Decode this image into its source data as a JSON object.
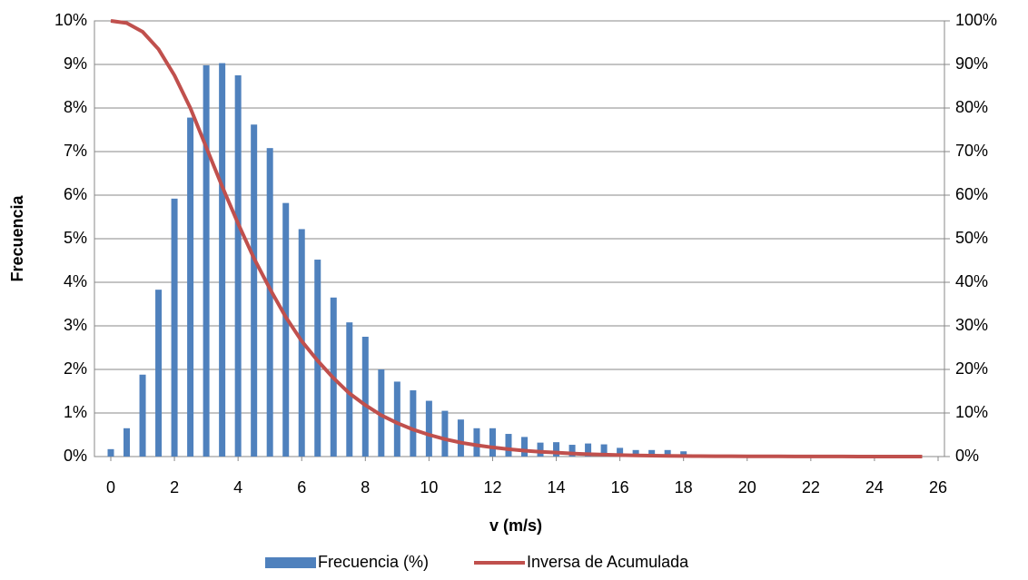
{
  "chart_data": {
    "type": "bar-line",
    "x_label": "v (m/s)",
    "y_label": "Frecuencia",
    "legend": "bottom",
    "grid": true,
    "xlim": [
      0,
      26
    ],
    "xticks": [
      0,
      2,
      4,
      6,
      8,
      10,
      12,
      14,
      16,
      18,
      20,
      22,
      24,
      26
    ],
    "ylim": [
      0,
      10
    ],
    "yticks": [
      {
        "value": 0,
        "label": "0%"
      },
      {
        "value": 1,
        "label": "1%"
      },
      {
        "value": 2,
        "label": "2%"
      },
      {
        "value": 3,
        "label": "3%"
      },
      {
        "value": 4,
        "label": "4%"
      },
      {
        "value": 5,
        "label": "5%"
      },
      {
        "value": 6,
        "label": "6%"
      },
      {
        "value": 7,
        "label": "7%"
      },
      {
        "value": 8,
        "label": "8%"
      },
      {
        "value": 9,
        "label": "9%"
      },
      {
        "value": 10,
        "label": "10%"
      }
    ],
    "y2lim": [
      0,
      100
    ],
    "y2ticks": [
      {
        "value": 0,
        "label": "0%"
      },
      {
        "value": 10,
        "label": "10%"
      },
      {
        "value": 20,
        "label": "20%"
      },
      {
        "value": 30,
        "label": "30%"
      },
      {
        "value": 40,
        "label": "40%"
      },
      {
        "value": 50,
        "label": "50%"
      },
      {
        "value": 60,
        "label": "60%"
      },
      {
        "value": 70,
        "label": "70%"
      },
      {
        "value": 80,
        "label": "80%"
      },
      {
        "value": 90,
        "label": "90%"
      },
      {
        "value": 100,
        "label": "100%"
      }
    ],
    "series": [
      {
        "name": "Frecuencia (%)",
        "type": "bar",
        "color": "#4f81bd",
        "x": [
          0,
          0.5,
          1,
          1.5,
          2,
          2.5,
          3,
          3.5,
          4,
          4.5,
          5,
          5.5,
          6,
          6.5,
          7,
          7.5,
          8,
          8.5,
          9,
          9.5,
          10,
          10.5,
          11,
          11.5,
          12,
          12.5,
          13,
          13.5,
          14,
          14.5,
          15,
          15.5,
          16,
          16.5,
          17,
          17.5,
          18
        ],
        "values": [
          0.17,
          0.65,
          1.88,
          3.83,
          5.92,
          7.78,
          8.98,
          9.03,
          8.75,
          7.62,
          7.08,
          5.82,
          5.22,
          4.52,
          3.65,
          3.08,
          2.75,
          2.0,
          1.72,
          1.52,
          1.28,
          1.05,
          0.85,
          0.65,
          0.65,
          0.52,
          0.45,
          0.32,
          0.33,
          0.27,
          0.3,
          0.28,
          0.2,
          0.15,
          0.15,
          0.15,
          0.12
        ]
      },
      {
        "name": "Inversa de Acumulada",
        "type": "line",
        "axis": "y2",
        "color": "#c0504d",
        "x": [
          0,
          0.5,
          1,
          1.5,
          2,
          2.5,
          3,
          3.5,
          4,
          4.5,
          5,
          5.5,
          6,
          6.5,
          7,
          7.5,
          8,
          8.5,
          9,
          9.5,
          10,
          10.5,
          11,
          11.5,
          12,
          12.5,
          13,
          13.5,
          14,
          14.5,
          15,
          15.5,
          16,
          16.5,
          17,
          17.5,
          18,
          18.5,
          19,
          19.5,
          20,
          20.5,
          21,
          21.5,
          22,
          22.5,
          23,
          23.5,
          24,
          24.5,
          25,
          25.5
        ],
        "values": [
          100,
          99.5,
          97.5,
          93.5,
          87.5,
          80,
          71,
          62,
          53.5,
          45.5,
          38.5,
          32,
          26.5,
          22,
          18,
          14.5,
          11.8,
          9.5,
          7.7,
          6.2,
          5,
          4,
          3.2,
          2.6,
          2.1,
          1.7,
          1.35,
          1.1,
          0.9,
          0.7,
          0.55,
          0.45,
          0.35,
          0.27,
          0.2,
          0.15,
          0.12,
          0.1,
          0.08,
          0.07,
          0.06,
          0.05,
          0.04,
          0.03,
          0.03,
          0.02,
          0.02,
          0.01,
          0.01,
          0.01,
          0,
          0
        ]
      }
    ]
  }
}
